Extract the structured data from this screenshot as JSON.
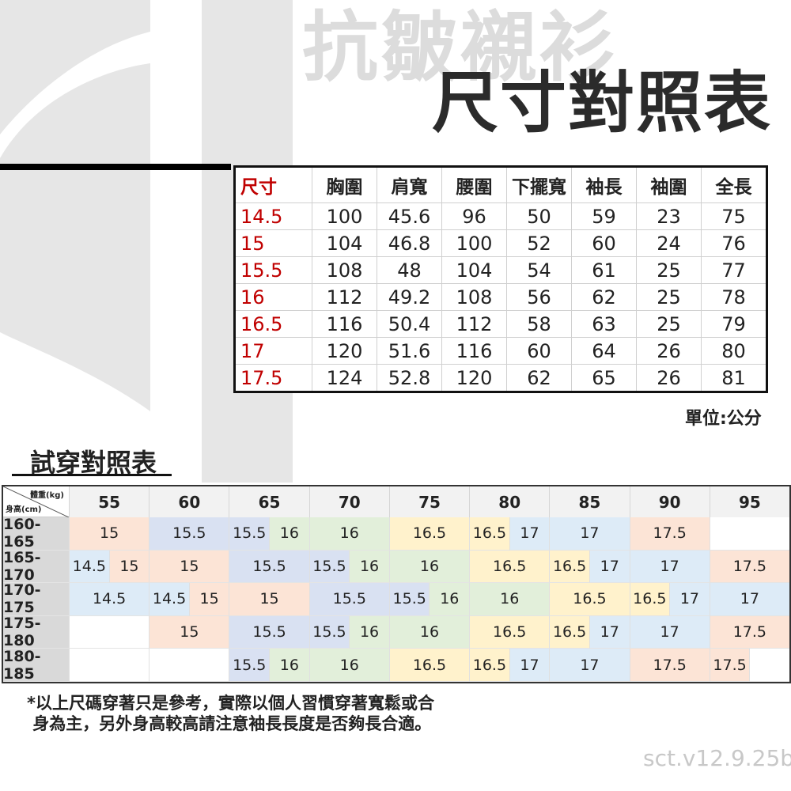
{
  "watermark_title": "抗皺襯衫",
  "title": "尺寸對照表",
  "size_table": {
    "headers": [
      "尺寸",
      "胸圍",
      "肩寬",
      "腰圍",
      "下擺寬",
      "袖長",
      "袖圍",
      "全長"
    ],
    "rows": [
      [
        "14.5",
        "100",
        "45.6",
        "96",
        "50",
        "59",
        "23",
        "75"
      ],
      [
        "15",
        "104",
        "46.8",
        "100",
        "52",
        "60",
        "24",
        "76"
      ],
      [
        "15.5",
        "108",
        "48",
        "104",
        "54",
        "61",
        "25",
        "77"
      ],
      [
        "16",
        "112",
        "49.2",
        "108",
        "56",
        "62",
        "25",
        "78"
      ],
      [
        "16.5",
        "116",
        "50.4",
        "112",
        "58",
        "63",
        "25",
        "79"
      ],
      [
        "17",
        "120",
        "51.6",
        "116",
        "60",
        "64",
        "26",
        "80"
      ],
      [
        "17.5",
        "124",
        "52.8",
        "120",
        "62",
        "65",
        "26",
        "81"
      ]
    ],
    "size_color": "#c00000"
  },
  "unit": "單位:公分",
  "try_on": {
    "title": "試穿對照表",
    "corner_weight": "體重(kg)",
    "corner_height": "身高(cm)",
    "weights": [
      "55",
      "60",
      "65",
      "70",
      "75",
      "80",
      "85",
      "90",
      "95"
    ],
    "size_colors": {
      "14.5": "#ddebf7",
      "15": "#fce4d6",
      "15.5": "#d9e1f2",
      "16": "#e2efda",
      "16.5": "#fff2cc",
      "17": "#ddebf7",
      "17.5": "#fce4d6",
      "": "#ffffff"
    },
    "rows": [
      {
        "height": "160-165",
        "cells": [
          [
            "15",
            2
          ],
          [
            "15.5",
            2
          ],
          [
            "15.5",
            1
          ],
          [
            "16",
            1
          ],
          [
            "16",
            2
          ],
          [
            "16.5",
            2
          ],
          [
            "16.5",
            1
          ],
          [
            "17",
            1
          ],
          [
            "17",
            2
          ],
          [
            "17.5",
            2
          ],
          [
            "",
            2
          ]
        ]
      },
      {
        "height": "165-170",
        "cells": [
          [
            "14.5",
            1
          ],
          [
            "15",
            1
          ],
          [
            "15",
            2
          ],
          [
            "15.5",
            2
          ],
          [
            "15.5",
            1
          ],
          [
            "16",
            1
          ],
          [
            "16",
            2
          ],
          [
            "16.5",
            2
          ],
          [
            "16.5",
            1
          ],
          [
            "17",
            1
          ],
          [
            "17",
            2
          ],
          [
            "17.5",
            2
          ]
        ]
      },
      {
        "height": "170-175",
        "cells": [
          [
            "14.5",
            2
          ],
          [
            "14.5",
            1
          ],
          [
            "15",
            1
          ],
          [
            "15",
            2
          ],
          [
            "15.5",
            2
          ],
          [
            "15.5",
            1
          ],
          [
            "16",
            1
          ],
          [
            "16",
            2
          ],
          [
            "16.5",
            2
          ],
          [
            "16.5",
            1
          ],
          [
            "17",
            1
          ],
          [
            "17",
            2
          ]
        ]
      },
      {
        "height": "175-180",
        "cells": [
          [
            "",
            2
          ],
          [
            "15",
            2
          ],
          [
            "15.5",
            2
          ],
          [
            "15.5",
            1
          ],
          [
            "16",
            1
          ],
          [
            "16",
            2
          ],
          [
            "16.5",
            2
          ],
          [
            "16.5",
            1
          ],
          [
            "17",
            1
          ],
          [
            "17",
            2
          ],
          [
            "17.5",
            2
          ]
        ]
      },
      {
        "height": "180-185",
        "cells": [
          [
            "",
            2
          ],
          [
            "",
            2
          ],
          [
            "15.5",
            1
          ],
          [
            "16",
            1
          ],
          [
            "16",
            2
          ],
          [
            "16.5",
            2
          ],
          [
            "16.5",
            1
          ],
          [
            "17",
            1
          ],
          [
            "17",
            2
          ],
          [
            "17.5",
            2
          ],
          [
            "17.5",
            1
          ],
          [
            "",
            1
          ]
        ]
      }
    ]
  },
  "note": "*以上尺碼穿著只是參考，實際以個人習慣穿著寬鬆或合\n 身為主，另外身高較高請注意袖長長度是否夠長合適。",
  "version": "sct.v12.9.25b"
}
